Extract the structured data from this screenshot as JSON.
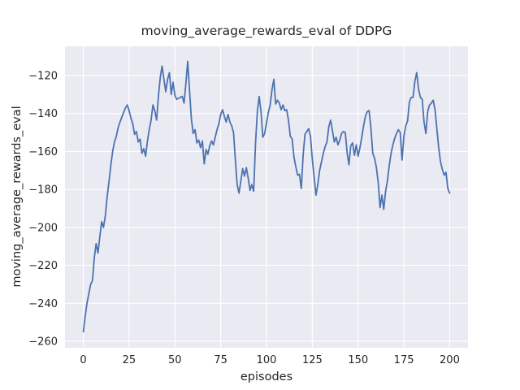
{
  "chart_data": {
    "type": "line",
    "title": "moving_average_rewards_eval of DDPG",
    "xlabel": "episodes",
    "ylabel": "moving_average_rewards_eval",
    "x_ticks": [
      0,
      25,
      50,
      75,
      100,
      125,
      150,
      175,
      200
    ],
    "y_ticks": [
      -260,
      -240,
      -220,
      -200,
      -180,
      -160,
      -140,
      -120
    ],
    "xlim": [
      -10,
      210
    ],
    "ylim": [
      -263.4,
      -104.6
    ],
    "grid": true,
    "legend": "none",
    "line_color": "#4c72b0",
    "plot_bg_color": "#eaeaf2",
    "grid_color": "#ffffff",
    "text_color": "#262626",
    "x_start": 0,
    "x_step": 1,
    "values": [
      -255,
      -247,
      -240,
      -235,
      -230,
      -228,
      -216,
      -208.5,
      -213.5,
      -205,
      -197,
      -200,
      -194,
      -184,
      -176,
      -167.5,
      -160,
      -155,
      -152,
      -147.5,
      -144.5,
      -142,
      -139.5,
      -137,
      -135.5,
      -138.5,
      -142.5,
      -145.5,
      -151,
      -149.5,
      -155,
      -153.5,
      -161,
      -158.5,
      -162.5,
      -154.5,
      -148.5,
      -143.5,
      -135.5,
      -138.5,
      -143.5,
      -131,
      -121,
      -115,
      -122,
      -128.5,
      -122,
      -118.5,
      -130,
      -123.5,
      -130.5,
      -132.5,
      -132,
      -131.5,
      -131,
      -134.5,
      -124,
      -112.5,
      -128,
      -143,
      -150.5,
      -148.5,
      -155.5,
      -154,
      -158,
      -154.5,
      -166.5,
      -159,
      -161.5,
      -157,
      -154.5,
      -156.5,
      -152.5,
      -148.5,
      -145.5,
      -140.5,
      -138,
      -141.5,
      -144.5,
      -140.5,
      -144.5,
      -146.5,
      -150,
      -164.5,
      -177.5,
      -182,
      -175.5,
      -169,
      -173,
      -168.5,
      -174,
      -180.5,
      -177.5,
      -181,
      -156,
      -139,
      -131,
      -139,
      -152.5,
      -150.5,
      -145,
      -139.5,
      -135.5,
      -127.5,
      -122,
      -135,
      -133,
      -134.5,
      -138,
      -135.5,
      -138.5,
      -138,
      -143.5,
      -152,
      -153.5,
      -163,
      -168,
      -172.5,
      -172,
      -179.5,
      -162,
      -151,
      -149.5,
      -148,
      -152,
      -164,
      -173.5,
      -183,
      -177.5,
      -170,
      -165.5,
      -161,
      -157.5,
      -155,
      -147,
      -143.5,
      -149,
      -155,
      -152.5,
      -156.5,
      -154,
      -150.5,
      -149.5,
      -150,
      -160.5,
      -167,
      -157,
      -155.5,
      -162,
      -156.5,
      -162.5,
      -158,
      -152.5,
      -146.5,
      -141.5,
      -139,
      -138.5,
      -147.5,
      -161,
      -163.5,
      -168.5,
      -176.5,
      -189.5,
      -183,
      -190.5,
      -181,
      -175.5,
      -167.5,
      -161,
      -156.5,
      -153,
      -150.5,
      -148.5,
      -150,
      -164.5,
      -152,
      -146.5,
      -144,
      -134,
      -131.5,
      -131.5,
      -123,
      -118.5,
      -127,
      -131.5,
      -132.5,
      -144.5,
      -150.5,
      -139,
      -135.5,
      -134.5,
      -133,
      -138,
      -148,
      -158,
      -165.5,
      -169.5,
      -172.5,
      -171,
      -179.5,
      -182
    ]
  }
}
